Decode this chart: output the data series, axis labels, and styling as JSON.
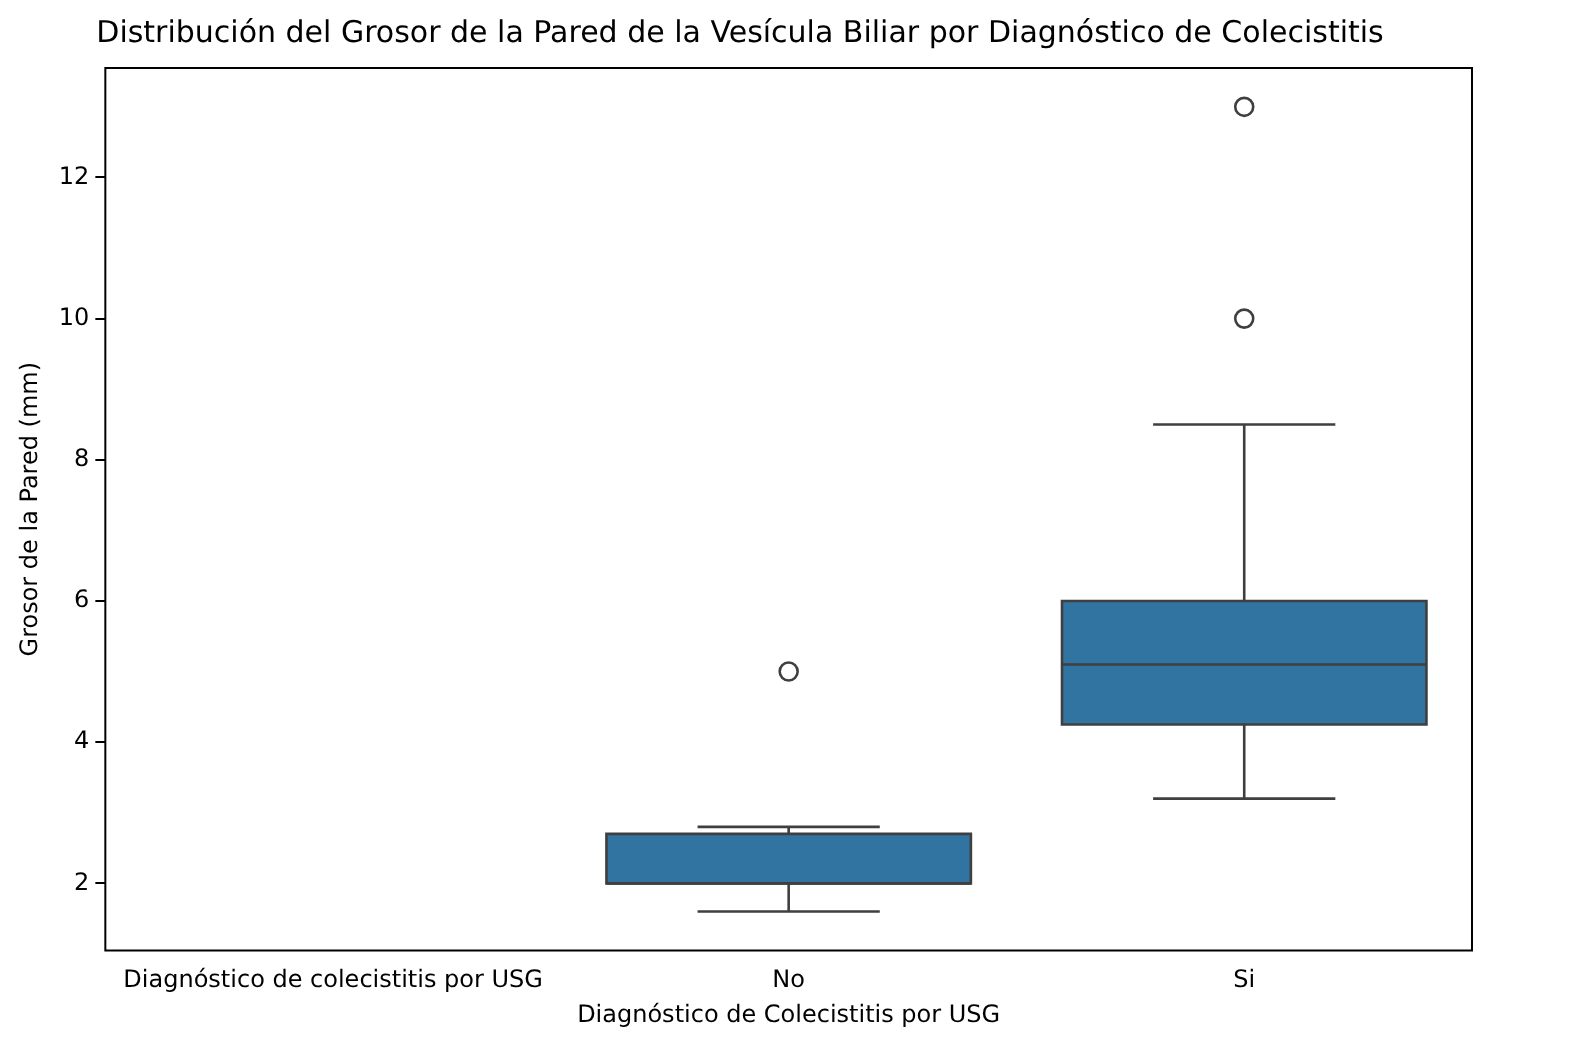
{
  "chart_data": {
    "type": "box",
    "title": "Distribución del Grosor de la Pared de la Vesícula Biliar por Diagnóstico de Colecistitis",
    "xlabel": "Diagnóstico de Colecistitis por USG",
    "ylabel": "Grosor de la Pared (mm)",
    "categories": [
      "Diagnóstico de colecistitis por USG",
      "No",
      "Si"
    ],
    "boxes": [
      null,
      {
        "low": 1.6,
        "q1": 2.0,
        "median": 2.0,
        "q3": 2.7,
        "high": 2.8,
        "outliers": [
          5
        ]
      },
      {
        "low": 3.2,
        "q1": 4.25,
        "median": 5.1,
        "q3": 6.0,
        "high": 8.5,
        "outliers": [
          10,
          13
        ]
      }
    ],
    "color": "#3274a1",
    "ylim": [
      1.05,
      13.55
    ],
    "yticks": [
      2,
      4,
      6,
      8,
      10,
      12
    ],
    "grid": false,
    "legend": false
  }
}
